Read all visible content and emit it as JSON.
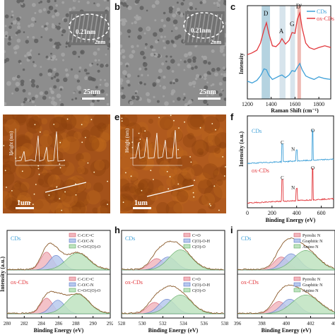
{
  "panel_labels": {
    "b": "b",
    "c": "c",
    "e": "e",
    "f": "f",
    "h": "h",
    "i": "i"
  },
  "tem_a": {
    "scale_bar": "25nm",
    "inset_lattice": "0.21nm",
    "inset_scale": "2nm"
  },
  "tem_b": {
    "scale_bar": "25nm",
    "inset_lattice": "0.21nm",
    "inset_scale": "2nm"
  },
  "afm_d": {
    "scale_bar": "1um",
    "inset_ylabel": "Height (nm)"
  },
  "afm_e": {
    "scale_bar": "1um",
    "inset_ylabel": "Height (nm)"
  },
  "colors": {
    "cds": "#3ea0d8",
    "ox_cds": "#e2373c",
    "d_band": "#9cc4d6",
    "g_band": "#c9dbe5",
    "dprime_band": "#e9a39a"
  },
  "chart_data": [
    {
      "id": "c",
      "type": "line",
      "xlabel": "Raman Shift (cm⁻¹)",
      "ylabel": "Intensity",
      "xlim": [
        1200,
        1900
      ],
      "xticks": [
        "1200",
        "1400",
        "1600",
        "1800"
      ],
      "legend": [
        "CDs",
        "ox-CDs"
      ],
      "legend_position": "top-right",
      "annotations": [
        "D",
        "A",
        "G",
        "D'"
      ],
      "shaded_bands": [
        [
          1320,
          1390
        ],
        [
          1470,
          1520
        ],
        [
          1560,
          1600
        ],
        [
          1620,
          1650
        ]
      ],
      "series": [
        {
          "name": "CDs",
          "x": [
            1200,
            1240,
            1280,
            1310,
            1340,
            1360,
            1380,
            1410,
            1440,
            1470,
            1490,
            1520,
            1550,
            1575,
            1600,
            1620,
            1640,
            1660,
            1690,
            1720,
            1760,
            1800,
            1850,
            1900
          ],
          "y": [
            0.2,
            0.18,
            0.21,
            0.26,
            0.34,
            0.33,
            0.27,
            0.22,
            0.24,
            0.26,
            0.27,
            0.24,
            0.27,
            0.32,
            0.31,
            0.36,
            0.4,
            0.33,
            0.26,
            0.24,
            0.22,
            0.25,
            0.23,
            0.22
          ]
        },
        {
          "name": "ox-CDs",
          "x": [
            1200,
            1240,
            1280,
            1310,
            1340,
            1360,
            1380,
            1410,
            1440,
            1470,
            1490,
            1520,
            1550,
            1575,
            1600,
            1620,
            1640,
            1660,
            1690,
            1720,
            1760,
            1800,
            1850,
            1900
          ],
          "y": [
            0.5,
            0.52,
            0.55,
            0.63,
            0.78,
            0.86,
            0.74,
            0.6,
            0.59,
            0.63,
            0.68,
            0.62,
            0.66,
            0.75,
            0.74,
            0.9,
            0.97,
            0.8,
            0.63,
            0.58,
            0.56,
            0.58,
            0.6,
            0.58
          ]
        }
      ]
    },
    {
      "id": "f",
      "type": "line",
      "xlabel": "Binding Energy (eV)",
      "ylabel": "Intensity (a.u.)",
      "sample_labels": [
        "CDs",
        "ox-CDs"
      ],
      "peak_labels": [
        "C",
        "N",
        "O"
      ],
      "xlim": [
        0,
        700
      ],
      "xticks": [
        "0",
        "200",
        "400",
        "600"
      ],
      "series": [
        {
          "name": "CDs",
          "peaks": [
            {
              "x": 284,
              "h": 0.45
            },
            {
              "x": 400,
              "h": 0.28
            },
            {
              "x": 531,
              "h": 0.75
            }
          ]
        },
        {
          "name": "ox-CDs",
          "peaks": [
            {
              "x": 284,
              "h": 0.55
            },
            {
              "x": 400,
              "h": 0.3
            },
            {
              "x": 531,
              "h": 0.8
            }
          ]
        }
      ]
    },
    {
      "id": "g",
      "type": "line",
      "xlabel": "Binding Energy (eV)",
      "ylabel": "Intensity (a.u.)",
      "xlim": [
        280,
        292
      ],
      "xticks": [
        "280",
        "282",
        "284",
        "286",
        "288",
        "290",
        "292"
      ],
      "legend_position": "top-right",
      "subpanels": [
        {
          "sample": "CDs",
          "legend": [
            "C-C/C=C",
            "C-O/C-N",
            "C=O/C(O)-O"
          ],
          "components": [
            {
              "center": 284.6,
              "width": 0.7,
              "height": 0.55
            },
            {
              "center": 285.7,
              "width": 0.8,
              "height": 0.45
            },
            {
              "center": 288.2,
              "width": 1.3,
              "height": 0.52
            }
          ]
        },
        {
          "sample": "ox-CDs",
          "legend": [
            "C-C/C=C",
            "C-O/C-N",
            "C=O/C(O)-O"
          ],
          "components": [
            {
              "center": 284.6,
              "width": 0.7,
              "height": 0.48
            },
            {
              "center": 285.9,
              "width": 0.8,
              "height": 0.42
            },
            {
              "center": 288.2,
              "width": 1.3,
              "height": 0.6
            }
          ]
        }
      ]
    },
    {
      "id": "h",
      "type": "line",
      "xlabel": "Binding Energy (eV)",
      "ylabel": "",
      "xlim": [
        528,
        538
      ],
      "xticks": [
        "528",
        "530",
        "532",
        "534",
        "536",
        "538"
      ],
      "legend_position": "top-right",
      "subpanels": [
        {
          "sample": "CDs",
          "legend": [
            "C=O",
            "C(O)-O-H",
            "C(O)-O"
          ],
          "components": [
            {
              "center": 531.4,
              "width": 0.7,
              "height": 0.35
            },
            {
              "center": 532.5,
              "width": 0.8,
              "height": 0.4
            },
            {
              "center": 533.7,
              "width": 1.1,
              "height": 0.62
            }
          ]
        },
        {
          "sample": "ox-CDs",
          "legend": [
            "C=O",
            "C(O)-O-H",
            "C(O)-O"
          ],
          "components": [
            {
              "center": 531.2,
              "width": 0.7,
              "height": 0.35
            },
            {
              "center": 532.4,
              "width": 0.8,
              "height": 0.45
            },
            {
              "center": 533.7,
              "width": 1.1,
              "height": 0.58
            }
          ]
        }
      ]
    },
    {
      "id": "i",
      "type": "line",
      "xlabel": "Binding Energy (eV)",
      "ylabel": "",
      "xlim": [
        396,
        404
      ],
      "xticks": [
        "396",
        "398",
        "400",
        "402",
        "404"
      ],
      "legend_position": "top-right",
      "subpanels": [
        {
          "sample": "CDs",
          "legend": [
            "Pyrrolic N",
            "Graphitic N",
            "Amino N"
          ],
          "components": [
            {
              "center": 399.6,
              "width": 0.6,
              "height": 0.4
            },
            {
              "center": 400.4,
              "width": 0.7,
              "height": 0.5
            },
            {
              "center": 401.6,
              "width": 1.0,
              "height": 0.6
            }
          ]
        },
        {
          "sample": "ox-CDs",
          "legend": [
            "Pyrrolic N",
            "Graphitic N",
            "Amino N"
          ],
          "components": [
            {
              "center": 399.4,
              "width": 0.6,
              "height": 0.38
            },
            {
              "center": 400.3,
              "width": 0.7,
              "height": 0.45
            },
            {
              "center": 401.6,
              "width": 1.1,
              "height": 0.58
            }
          ]
        }
      ]
    }
  ]
}
